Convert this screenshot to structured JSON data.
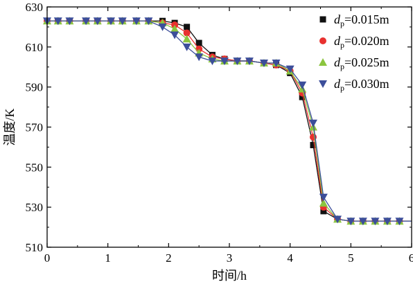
{
  "chart_data": {
    "type": "line",
    "xlabel": "时间/h",
    "ylabel": "温度/K",
    "xlim": [
      0,
      6
    ],
    "ylim": [
      510,
      630
    ],
    "xticks": [
      "0",
      "1",
      "2",
      "3",
      "4",
      "5",
      "6"
    ],
    "yticks": [
      "510",
      "530",
      "550",
      "570",
      "590",
      "610",
      "630"
    ],
    "grid": false,
    "legend_position": "top-right",
    "x": [
      0,
      0.2,
      0.4,
      0.6,
      0.8,
      1.0,
      1.2,
      1.4,
      1.6,
      1.8,
      2.0,
      2.2,
      2.4,
      2.6,
      2.8,
      3.0,
      3.2,
      3.4,
      3.6,
      3.8,
      4.0,
      4.2,
      4.4,
      4.6,
      4.8,
      5.0,
      5.2,
      5.4,
      5.6,
      5.8
    ],
    "series": [
      {
        "name_prefix": "d",
        "name_sub": "p",
        "name_suffix": "=0.015m",
        "color": "#111111",
        "marker": "square",
        "x": [
          0,
          0.18,
          0.37,
          0.64,
          0.83,
          1.05,
          1.24,
          1.47,
          1.67,
          1.9,
          2.1,
          2.3,
          2.5,
          2.72,
          2.92,
          3.13,
          3.33,
          3.57,
          3.77,
          4.0,
          4.2,
          4.38,
          4.55,
          4.78,
          5.0,
          5.2,
          5.4,
          5.6,
          5.8
        ],
        "y": [
          623,
          623,
          623,
          623,
          623,
          623,
          623,
          623,
          623,
          623,
          622,
          620,
          612,
          606,
          604,
          603,
          603,
          602,
          601,
          597,
          585,
          561,
          528,
          524,
          523,
          523,
          523,
          523,
          523
        ]
      },
      {
        "name_prefix": "d",
        "name_sub": "p",
        "name_suffix": "=0.020m",
        "color": "#e8312f",
        "marker": "circle",
        "x": [
          0,
          0.18,
          0.37,
          0.64,
          0.83,
          1.05,
          1.24,
          1.47,
          1.67,
          1.9,
          2.1,
          2.3,
          2.5,
          2.72,
          2.92,
          3.13,
          3.33,
          3.57,
          3.77,
          4.0,
          4.2,
          4.38,
          4.55,
          4.78,
          5.0,
          5.2,
          5.4,
          5.6,
          5.8
        ],
        "y": [
          623,
          623,
          623,
          623,
          623,
          623,
          623,
          623,
          623,
          622,
          621,
          617,
          609,
          605,
          604,
          603,
          603,
          602,
          601,
          598,
          587,
          565,
          530,
          524,
          523,
          523,
          523,
          523,
          523
        ]
      },
      {
        "name_prefix": "d",
        "name_sub": "p",
        "name_suffix": "=0.025m",
        "color": "#8bc53f",
        "marker": "triangle-up",
        "x": [
          0,
          0.18,
          0.37,
          0.64,
          0.83,
          1.05,
          1.24,
          1.47,
          1.67,
          1.9,
          2.1,
          2.3,
          2.5,
          2.72,
          2.92,
          3.13,
          3.33,
          3.57,
          3.77,
          4.0,
          4.2,
          4.38,
          4.55,
          4.78,
          5.0,
          5.2,
          5.4,
          5.6,
          5.8
        ],
        "y": [
          623,
          623,
          623,
          623,
          623,
          623,
          623,
          623,
          623,
          622,
          619,
          614,
          607,
          604,
          603,
          603,
          603,
          602,
          602,
          598,
          589,
          570,
          532,
          524,
          523,
          523,
          523,
          523,
          523
        ]
      },
      {
        "name_prefix": "d",
        "name_sub": "p",
        "name_suffix": "=0.030m",
        "color": "#3c4e9a",
        "marker": "triangle-down",
        "x": [
          0,
          0.18,
          0.37,
          0.64,
          0.83,
          1.05,
          1.24,
          1.47,
          1.67,
          1.9,
          2.1,
          2.3,
          2.5,
          2.72,
          2.92,
          3.13,
          3.33,
          3.57,
          3.77,
          4.0,
          4.2,
          4.38,
          4.55,
          4.78,
          5.0,
          5.2,
          5.4,
          5.6,
          5.8
        ],
        "y": [
          623,
          623,
          623,
          623,
          623,
          623,
          623,
          623,
          623,
          620,
          616,
          610,
          605,
          603,
          603,
          603,
          603,
          602,
          602,
          599,
          591,
          572,
          535,
          524,
          523,
          523,
          523,
          523,
          523
        ]
      }
    ]
  }
}
